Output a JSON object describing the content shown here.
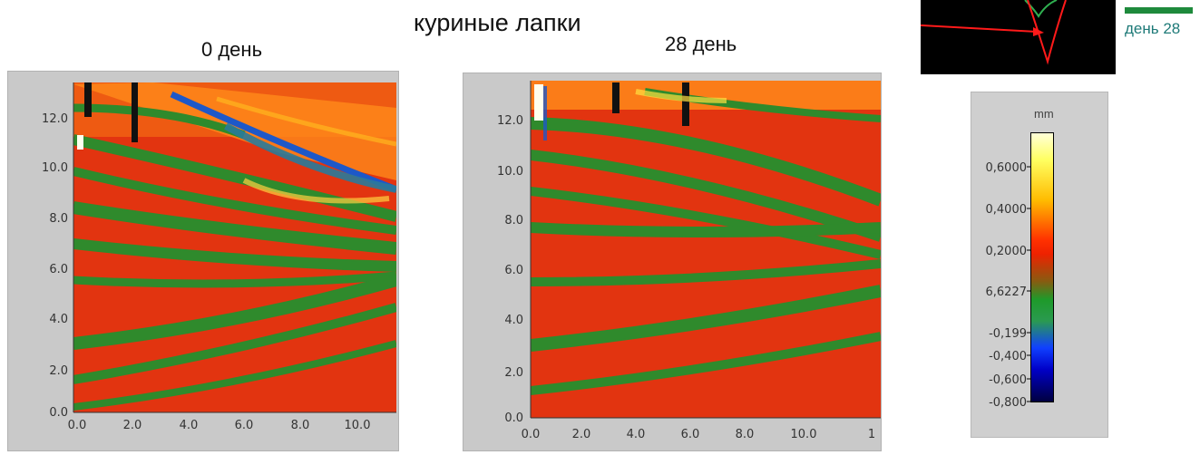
{
  "title": "куриные лапки",
  "panels": [
    {
      "title": "0 день",
      "x_ticks": [
        "0.0",
        "2.0",
        "4.0",
        "6.0",
        "8.0",
        "10.0"
      ],
      "y_ticks": [
        "0.0",
        "2.0",
        "4.0",
        "6.0",
        "8.0",
        "10.0",
        "12.0"
      ]
    },
    {
      "title": "28 день",
      "x_ticks": [
        "0.0",
        "2.0",
        "4.0",
        "6.0",
        "8.0",
        "10.0",
        "1"
      ],
      "y_ticks": [
        "0.0",
        "2.0",
        "4.0",
        "6.0",
        "8.0",
        "10.0",
        "12.0"
      ]
    }
  ],
  "legend": {
    "label": "день 28",
    "color": "#1e8a3c"
  },
  "colorbar": {
    "unit": "mm",
    "ticks": [
      "0,6000",
      "0,4000",
      "0,2000",
      "6,6227",
      "-0,199",
      "-0,400",
      "-0,600",
      "-0,800"
    ]
  },
  "colors": {
    "red": "#e23410",
    "green": "#2f8a2c",
    "blue": "#1e58c8",
    "yellow": "#ffe040",
    "orange": "#ff8a1a"
  }
}
